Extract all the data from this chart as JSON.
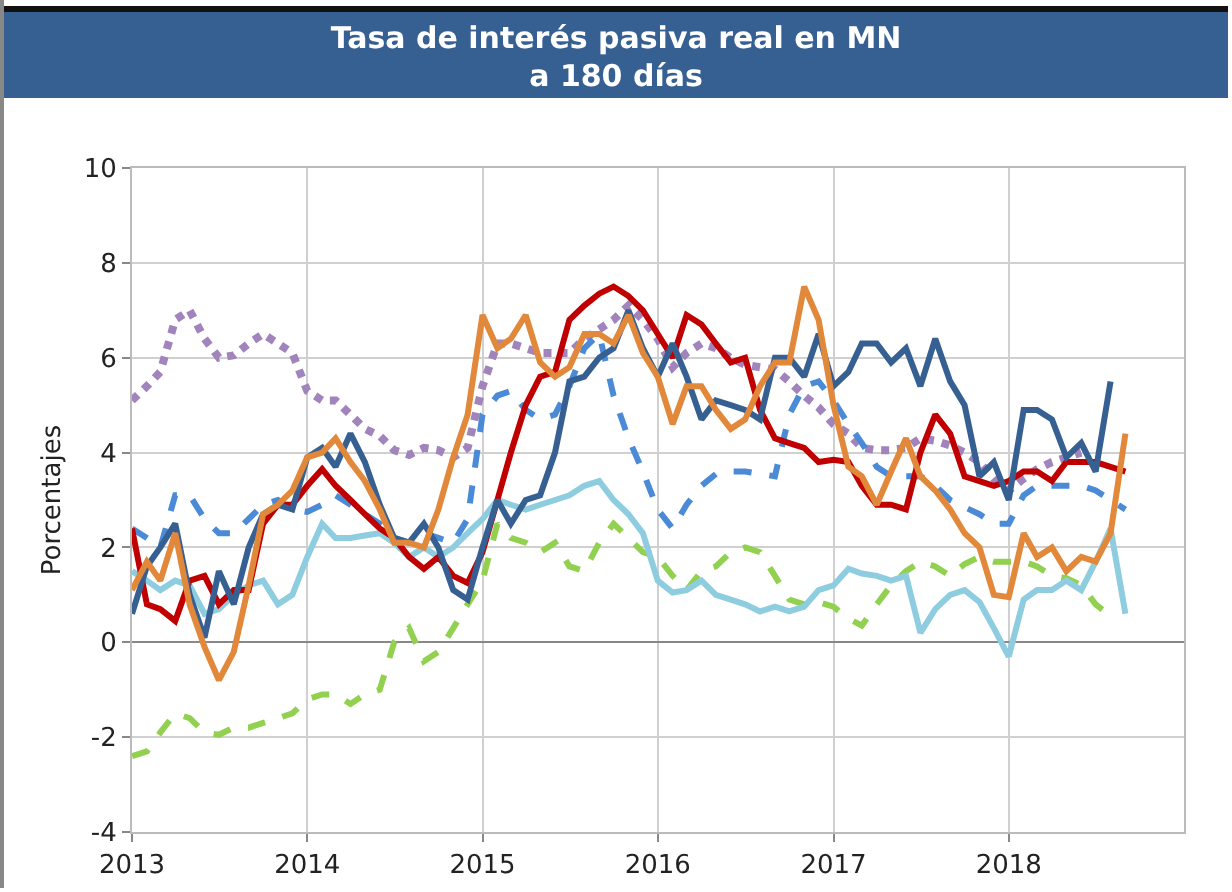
{
  "chart_data": {
    "type": "line",
    "title": "Tasa de interés pasiva real en MN\na 180 días",
    "ylabel": "Porcentajes",
    "x": [
      "2013-01",
      "2013-02",
      "2013-03",
      "2013-04",
      "2013-05",
      "2013-06",
      "2013-07",
      "2013-08",
      "2013-09",
      "2013-10",
      "2013-11",
      "2013-12",
      "2014-01",
      "2014-02",
      "2014-03",
      "2014-04",
      "2014-05",
      "2014-06",
      "2014-07",
      "2014-08",
      "2014-09",
      "2014-10",
      "2014-11",
      "2014-12",
      "2015-01",
      "2015-02",
      "2015-03",
      "2015-04",
      "2015-05",
      "2015-06",
      "2015-07",
      "2015-08",
      "2015-09",
      "2015-10",
      "2015-11",
      "2015-12",
      "2016-01",
      "2016-02",
      "2016-03",
      "2016-04",
      "2016-05",
      "2016-06",
      "2016-07",
      "2016-08",
      "2016-09",
      "2016-10",
      "2016-11",
      "2016-12",
      "2017-01",
      "2017-02",
      "2017-03",
      "2017-04",
      "2017-05",
      "2017-06",
      "2017-07",
      "2017-08",
      "2017-09",
      "2017-10",
      "2017-11",
      "2017-12",
      "2018-01",
      "2018-02",
      "2018-03",
      "2018-04",
      "2018-05",
      "2018-06",
      "2018-07",
      "2018-08",
      "2018-09"
    ],
    "xlim": [
      "2013-01",
      "2019-01"
    ],
    "xticks": [
      {
        "value": "2013-01",
        "label": "2013"
      },
      {
        "value": "2014-01",
        "label": "2014"
      },
      {
        "value": "2015-01",
        "label": "2015"
      },
      {
        "value": "2016-01",
        "label": "2016"
      },
      {
        "value": "2017-01",
        "label": "2017"
      },
      {
        "value": "2018-01",
        "label": "2018"
      }
    ],
    "ylim": [
      -4,
      10
    ],
    "yticks": [
      -4,
      -2,
      0,
      2,
      4,
      6,
      8,
      10
    ],
    "grid": true,
    "marker": "none",
    "series": [
      {
        "color": "#a184bc",
        "line_style": "dotted",
        "values": [
          5.1,
          5.4,
          5.7,
          6.8,
          7.0,
          6.4,
          6.0,
          6.05,
          6.3,
          6.5,
          6.3,
          6.1,
          5.3,
          5.1,
          5.1,
          4.8,
          4.5,
          4.35,
          4.05,
          3.95,
          4.1,
          4.05,
          3.9,
          4.1,
          5.4,
          6.3,
          6.3,
          6.2,
          6.1,
          6.1,
          6.1,
          6.4,
          6.6,
          6.8,
          7.1,
          6.8,
          6.4,
          5.8,
          6.1,
          6.3,
          6.2,
          6.0,
          5.85,
          5.8,
          5.75,
          5.5,
          5.2,
          4.95,
          4.6,
          4.4,
          4.1,
          4.05,
          4.05,
          4.1,
          4.3,
          4.25,
          4.15,
          4.0,
          3.8,
          3.45,
          3.2,
          3.45,
          3.65,
          3.8,
          3.9,
          4.0,
          null,
          null,
          null
        ]
      },
      {
        "color": "#4a8ad6",
        "line_style": "dashed",
        "values": [
          2.4,
          2.2,
          2.0,
          3.1,
          3.1,
          2.6,
          2.3,
          2.3,
          2.6,
          2.9,
          3.0,
          2.8,
          2.75,
          2.9,
          3.1,
          2.9,
          2.7,
          2.5,
          2.2,
          2.1,
          2.3,
          2.2,
          2.1,
          2.6,
          4.8,
          5.2,
          5.3,
          4.9,
          4.7,
          4.8,
          5.4,
          6.2,
          6.5,
          5.2,
          4.3,
          3.6,
          2.8,
          2.4,
          2.9,
          3.3,
          3.55,
          3.6,
          3.6,
          3.55,
          3.5,
          4.8,
          5.4,
          5.5,
          5.1,
          4.6,
          4.2,
          3.7,
          3.5,
          3.5,
          3.5,
          3.3,
          3.0,
          2.85,
          2.7,
          2.5,
          2.5,
          3.1,
          3.3,
          3.3,
          3.3,
          3.3,
          3.2,
          3.0,
          2.8
        ]
      },
      {
        "color": "#92d050",
        "line_style": "dashed",
        "values": [
          -2.4,
          -2.3,
          -1.9,
          -1.5,
          -1.6,
          -1.9,
          -1.95,
          -1.8,
          -1.8,
          -1.7,
          -1.6,
          -1.5,
          -1.2,
          -1.1,
          -1.1,
          -1.3,
          -1.1,
          -1.0,
          0.0,
          0.3,
          -0.4,
          -0.2,
          0.3,
          0.8,
          1.3,
          2.5,
          2.2,
          2.1,
          1.9,
          2.1,
          1.6,
          1.5,
          2.1,
          2.5,
          2.2,
          1.9,
          1.8,
          1.4,
          1.1,
          1.5,
          1.6,
          1.9,
          2.0,
          1.9,
          1.4,
          0.9,
          0.8,
          0.85,
          0.75,
          0.5,
          0.35,
          0.8,
          1.2,
          1.5,
          1.7,
          1.6,
          1.4,
          1.65,
          1.8,
          1.7,
          1.7,
          1.7,
          1.6,
          1.4,
          1.35,
          1.2,
          0.8,
          0.55,
          null
        ]
      },
      {
        "color": "#8ecde0",
        "line_style": "solid",
        "values": [
          1.5,
          1.3,
          1.1,
          1.3,
          1.2,
          0.6,
          0.7,
          1.0,
          1.2,
          1.3,
          0.8,
          1.0,
          1.8,
          2.5,
          2.2,
          2.2,
          2.25,
          2.3,
          2.1,
          1.8,
          2.0,
          1.8,
          2.0,
          2.3,
          2.6,
          3.0,
          2.9,
          2.8,
          2.9,
          3.0,
          3.1,
          3.3,
          3.4,
          3.0,
          2.7,
          2.3,
          1.3,
          1.05,
          1.1,
          1.3,
          1.0,
          0.9,
          0.8,
          0.65,
          0.75,
          0.65,
          0.75,
          1.1,
          1.2,
          1.55,
          1.45,
          1.4,
          1.3,
          1.4,
          0.2,
          0.7,
          1.0,
          1.1,
          0.85,
          0.3,
          -0.3,
          0.9,
          1.1,
          1.1,
          1.3,
          1.1,
          1.7,
          2.4,
          0.6
        ]
      },
      {
        "color": "#c00000",
        "line_style": "solid",
        "values": [
          2.4,
          0.8,
          0.7,
          0.45,
          1.3,
          1.4,
          0.8,
          1.1,
          1.1,
          2.5,
          2.9,
          2.9,
          3.3,
          3.65,
          3.3,
          3.0,
          2.7,
          2.4,
          2.2,
          1.8,
          1.55,
          1.8,
          1.4,
          1.25,
          1.9,
          3.0,
          4.0,
          5.0,
          5.6,
          5.7,
          6.8,
          7.1,
          7.35,
          7.5,
          7.3,
          7.0,
          6.5,
          6.0,
          6.9,
          6.7,
          6.3,
          5.9,
          6.0,
          4.9,
          4.3,
          4.2,
          4.1,
          3.8,
          3.85,
          3.8,
          3.3,
          2.9,
          2.9,
          2.8,
          4.0,
          4.8,
          4.4,
          3.5,
          3.4,
          3.3,
          3.4,
          3.6,
          3.6,
          3.4,
          3.8,
          3.8,
          3.8,
          3.7,
          3.6
        ]
      },
      {
        "color": "#376092",
        "line_style": "solid",
        "values": [
          0.6,
          1.6,
          2.0,
          2.5,
          1.0,
          0.1,
          1.5,
          0.8,
          2.0,
          2.7,
          2.9,
          2.8,
          3.9,
          4.1,
          3.7,
          4.4,
          3.8,
          2.9,
          2.2,
          2.1,
          2.5,
          2.0,
          1.1,
          0.9,
          2.0,
          3.0,
          2.5,
          3.0,
          3.1,
          4.0,
          5.5,
          5.6,
          6.0,
          6.2,
          7.0,
          6.2,
          5.6,
          6.3,
          5.6,
          4.7,
          5.1,
          5.0,
          4.9,
          4.7,
          6.0,
          6.0,
          5.6,
          6.5,
          5.4,
          5.7,
          6.3,
          6.3,
          5.9,
          6.2,
          5.4,
          6.4,
          5.5,
          5.0,
          3.5,
          3.8,
          3.0,
          4.9,
          4.9,
          4.7,
          3.9,
          4.2,
          3.6,
          5.5,
          null
        ]
      },
      {
        "color": "#e2883a",
        "line_style": "solid",
        "values": [
          1.1,
          1.7,
          1.3,
          2.3,
          0.8,
          -0.1,
          -0.8,
          -0.2,
          1.2,
          2.7,
          2.9,
          3.2,
          3.9,
          4.0,
          4.3,
          3.8,
          3.4,
          2.8,
          2.1,
          2.1,
          2.0,
          2.8,
          3.9,
          4.8,
          6.9,
          6.2,
          6.4,
          6.9,
          5.9,
          5.6,
          5.8,
          6.5,
          6.5,
          6.3,
          6.9,
          6.1,
          5.6,
          4.6,
          5.4,
          5.4,
          4.9,
          4.5,
          4.7,
          5.4,
          5.9,
          5.9,
          7.5,
          6.8,
          5.0,
          3.7,
          3.5,
          2.9,
          3.6,
          4.3,
          3.5,
          3.2,
          2.8,
          2.3,
          2.0,
          1.0,
          0.95,
          2.3,
          1.8,
          2.0,
          1.5,
          1.8,
          1.7,
          2.3,
          4.4
        ]
      }
    ]
  }
}
